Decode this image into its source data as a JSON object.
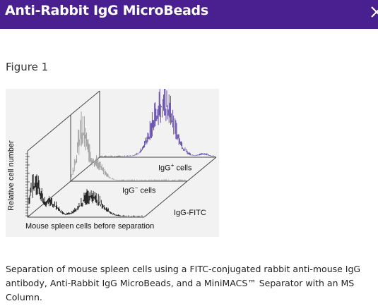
{
  "dialog": {
    "title": "Anti-Rabbit IgG MicroBeads",
    "close_icon": "close-icon",
    "accent_color": "#4a1f8f"
  },
  "figure": {
    "label": "Figure 1",
    "y_axis_label": "Relative cell number",
    "x_axis_label": "Mouse spleen cells before separation",
    "fitc_label": "IgG-FITC",
    "positive_label_prefix": "IgG",
    "positive_label_sup": "+",
    "positive_label_suffix": " cells",
    "negative_label_prefix": "IgG",
    "negative_label_sup": "−",
    "negative_label_suffix": " cells",
    "positive_color": "#5a3fa8",
    "negative_color": "#9a9a9a",
    "before_color": "#111111"
  },
  "caption": {
    "text": "Separation of mouse spleen cells using a FITC-conjugated rabbit anti-mouse IgG antibody, Anti-Rabbit IgG MicroBeads, and a MiniMACS™ Separator with an MS Column."
  }
}
